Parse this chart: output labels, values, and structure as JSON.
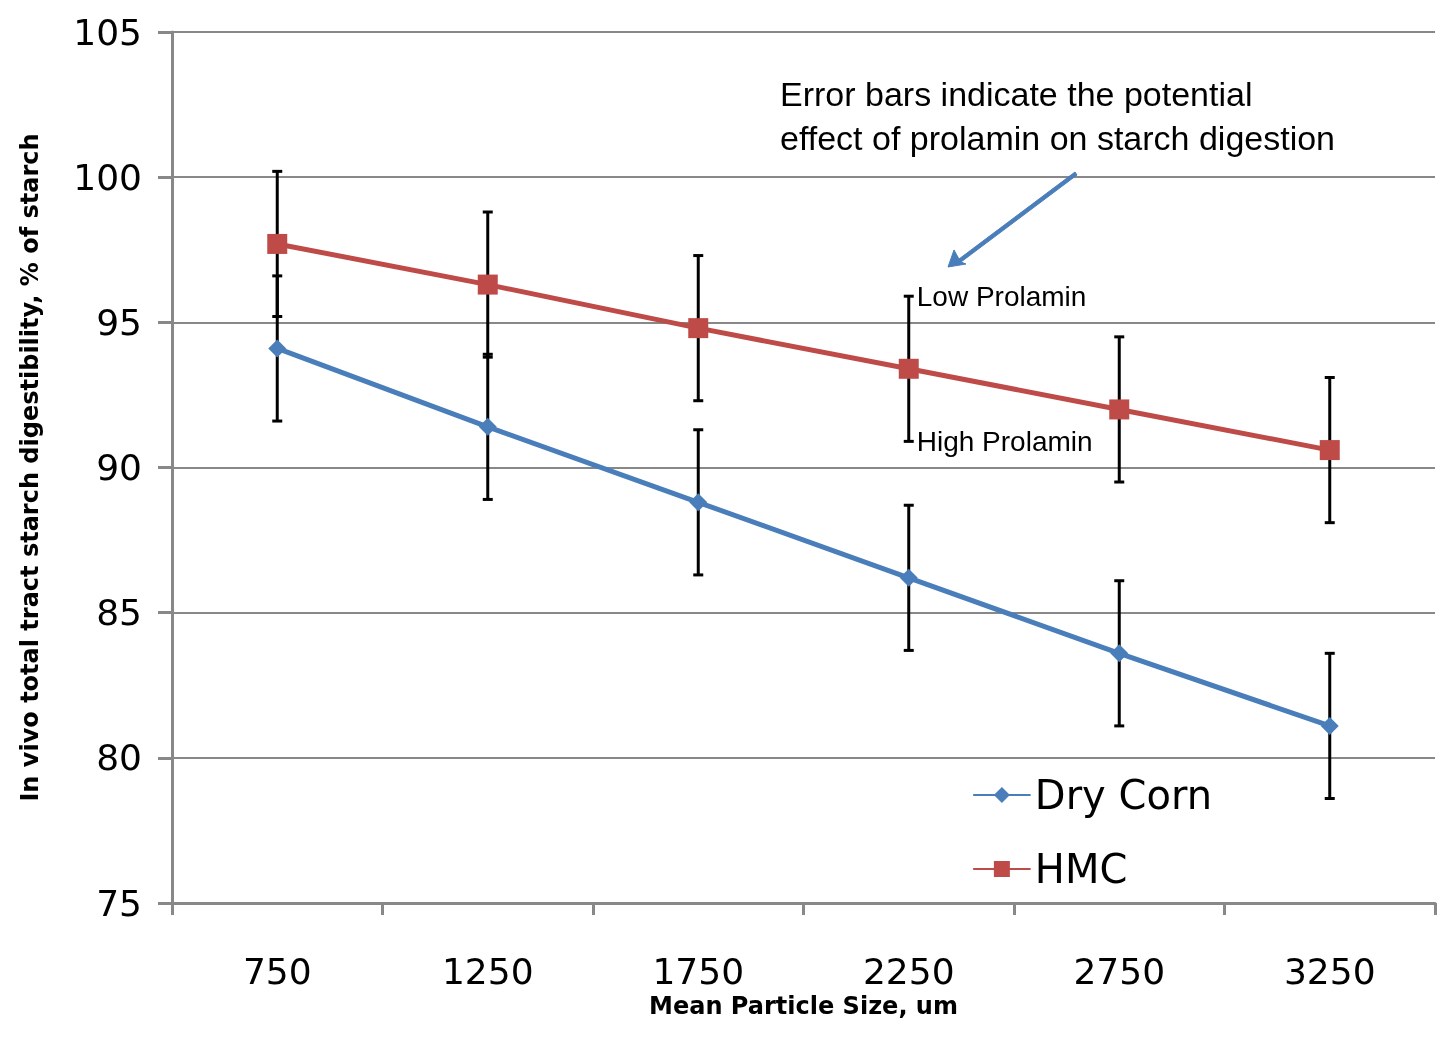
{
  "chart_data": {
    "type": "line",
    "xlabel": "Mean Particle Size, um",
    "ylabel": "In vivo total tract starch digestibility, % of starch",
    "categories": [
      "750",
      "1250",
      "1750",
      "2250",
      "2750",
      "3250"
    ],
    "series": [
      {
        "name": "Dry Corn",
        "color": "#4a7ebb",
        "marker": "diamond",
        "values": [
          94.1,
          91.4,
          88.8,
          86.2,
          83.6,
          81.1
        ],
        "errors": [
          2.5,
          2.5,
          2.5,
          2.5,
          2.5,
          2.5
        ]
      },
      {
        "name": "HMC",
        "color": "#be4b48",
        "marker": "square",
        "values": [
          97.7,
          96.3,
          94.8,
          93.4,
          92.0,
          90.6
        ],
        "errors": [
          2.5,
          2.5,
          2.5,
          2.5,
          2.5,
          2.5
        ]
      }
    ],
    "ylim": [
      75,
      105
    ],
    "yticks": [
      75,
      80,
      85,
      90,
      95,
      100,
      105
    ],
    "grid": "y",
    "legend": "bottom right",
    "line_style": "solid",
    "annotations": [
      "Error bars indicate the potential\neffect of prolamin on starch digestion",
      {
        "text": "Low Prolamin",
        "x": "2250",
        "y": 95.9
      },
      {
        "text": "High Prolamin",
        "x": "2250",
        "y": 90.9
      }
    ]
  }
}
